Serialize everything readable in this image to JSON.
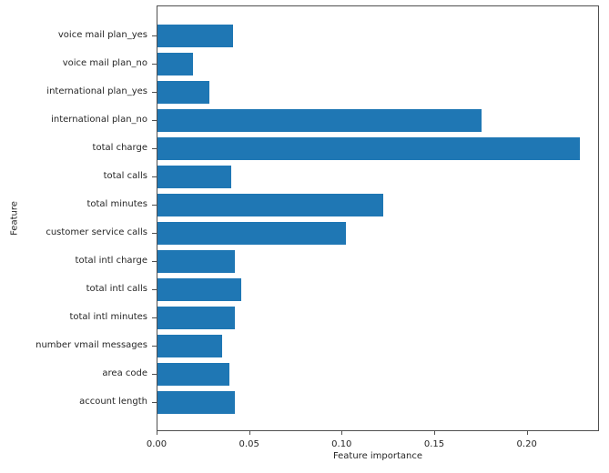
{
  "chart_data": {
    "type": "bar",
    "orientation": "horizontal",
    "title": "",
    "xlabel": "Feature importance",
    "ylabel": "Feature",
    "categories": [
      "voice mail plan_yes",
      "voice mail plan_no",
      "international plan_yes",
      "international plan_no",
      "total charge",
      "total calls",
      "total minutes",
      "customer service calls",
      "total intl charge",
      "total intl calls",
      "total intl minutes",
      "number vmail messages",
      "area code",
      "account length"
    ],
    "values": [
      0.041,
      0.019,
      0.028,
      0.175,
      0.228,
      0.04,
      0.122,
      0.102,
      0.042,
      0.045,
      0.042,
      0.035,
      0.039,
      0.042
    ],
    "xticks": [
      0,
      0.05,
      0.1,
      0.15,
      0.2
    ],
    "xtick_labels": [
      "0.00",
      "0.05",
      "0.10",
      "0.15",
      "0.20"
    ],
    "xlim": [
      0,
      0.239
    ],
    "bar_color": "#1f77b4",
    "grid": false
  }
}
